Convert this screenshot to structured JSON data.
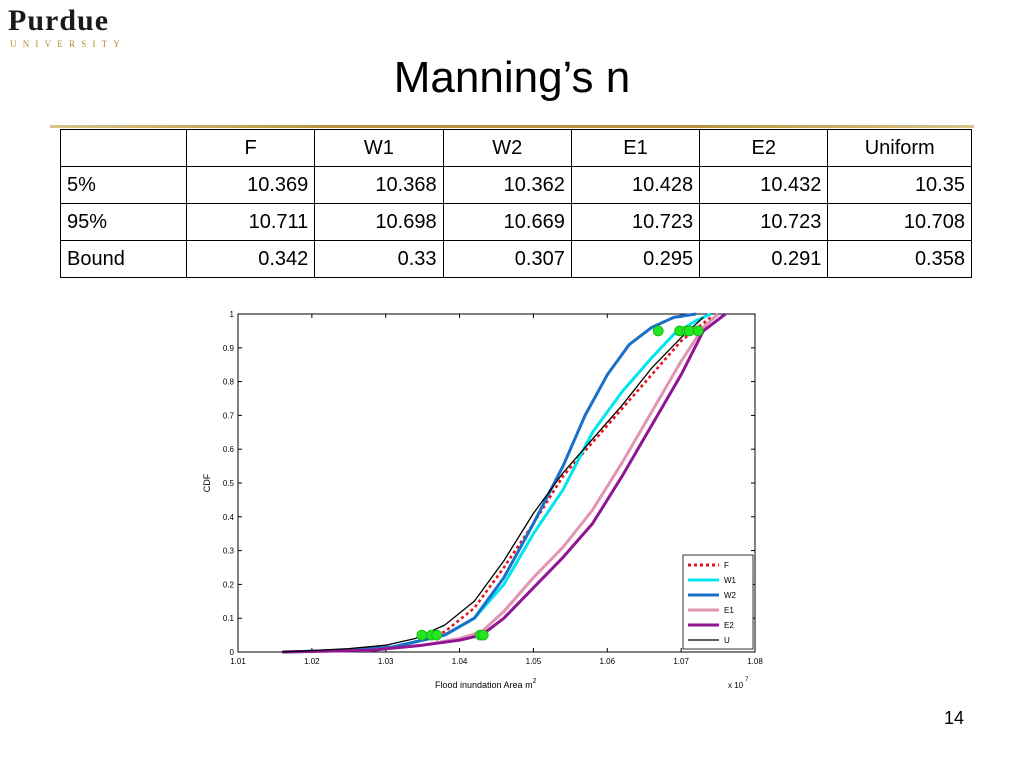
{
  "logo": {
    "name": "Purdue",
    "sub": "UNIVERSITY"
  },
  "slide": {
    "title": "Manning’s n",
    "number": "14"
  },
  "table": {
    "headers": [
      "",
      "F",
      "W1",
      "W2",
      "E1",
      "E2",
      "Uniform"
    ],
    "rows": [
      {
        "label": "5%",
        "values": [
          "10.369",
          "10.368",
          "10.362",
          "10.428",
          "10.432",
          "10.35"
        ]
      },
      {
        "label": "95%",
        "values": [
          "10.711",
          "10.698",
          "10.669",
          "10.723",
          "10.723",
          "10.708"
        ]
      },
      {
        "label": "Bound",
        "values": [
          "0.342",
          "0.33",
          "0.307",
          "0.295",
          "0.291",
          "0.358"
        ]
      }
    ]
  },
  "chart_data": {
    "type": "line",
    "xlabel": "Flood inundation Area m",
    "xlabel_superscript": "2",
    "ylabel": "CDF",
    "x_multiplier": "x 10",
    "x_multiplier_exp": "7",
    "xlim": [
      1.01,
      1.08
    ],
    "ylim": [
      0,
      1
    ],
    "xticks": [
      "1.01",
      "1.02",
      "1.03",
      "1.04",
      "1.05",
      "1.06",
      "1.07",
      "1.08"
    ],
    "yticks": [
      "0",
      "0.1",
      "0.2",
      "0.3",
      "0.4",
      "0.5",
      "0.6",
      "0.7",
      "0.8",
      "0.9",
      "1"
    ],
    "grid": false,
    "legend_position": "bottom-right",
    "colors": {
      "F": "#e8121c",
      "W1": "#00e5f0",
      "W2": "#1a6fc9",
      "E1": "#e394b4",
      "E2": "#8f1592",
      "U": "#000000",
      "marker": "#22e61e"
    },
    "series": [
      {
        "name": "F",
        "dash": true,
        "x": [
          1.016,
          1.025,
          1.031,
          1.034,
          1.038,
          1.042,
          1.046,
          1.05,
          1.054,
          1.058,
          1.062,
          1.066,
          1.07,
          1.074
        ],
        "y": [
          0,
          0.005,
          0.015,
          0.03,
          0.06,
          0.13,
          0.25,
          0.38,
          0.52,
          0.62,
          0.72,
          0.82,
          0.92,
          0.99
        ]
      },
      {
        "name": "W1",
        "dash": false,
        "x": [
          1.016,
          1.025,
          1.031,
          1.034,
          1.038,
          1.042,
          1.046,
          1.05,
          1.054,
          1.058,
          1.062,
          1.066,
          1.069,
          1.072,
          1.074
        ],
        "y": [
          0,
          0.005,
          0.015,
          0.03,
          0.05,
          0.1,
          0.2,
          0.35,
          0.48,
          0.65,
          0.77,
          0.87,
          0.94,
          0.98,
          1.0
        ]
      },
      {
        "name": "W2",
        "dash": false,
        "x": [
          1.016,
          1.025,
          1.031,
          1.034,
          1.038,
          1.042,
          1.046,
          1.05,
          1.054,
          1.057,
          1.06,
          1.063,
          1.066,
          1.069,
          1.072
        ],
        "y": [
          0,
          0.005,
          0.015,
          0.03,
          0.05,
          0.1,
          0.22,
          0.38,
          0.55,
          0.7,
          0.82,
          0.91,
          0.96,
          0.99,
          1.0
        ]
      },
      {
        "name": "E1",
        "dash": false,
        "x": [
          1.016,
          1.028,
          1.035,
          1.04,
          1.043,
          1.046,
          1.05,
          1.054,
          1.058,
          1.062,
          1.066,
          1.07,
          1.073,
          1.075
        ],
        "y": [
          0,
          0.005,
          0.02,
          0.04,
          0.06,
          0.12,
          0.22,
          0.31,
          0.42,
          0.56,
          0.71,
          0.86,
          0.96,
          1.0
        ]
      },
      {
        "name": "E2",
        "dash": false,
        "x": [
          1.016,
          1.028,
          1.035,
          1.04,
          1.043,
          1.046,
          1.05,
          1.054,
          1.058,
          1.062,
          1.066,
          1.07,
          1.073,
          1.076
        ],
        "y": [
          0,
          0.005,
          0.02,
          0.035,
          0.05,
          0.1,
          0.19,
          0.28,
          0.38,
          0.52,
          0.67,
          0.82,
          0.95,
          1.0
        ]
      },
      {
        "name": "U",
        "dash": false,
        "x": [
          1.016,
          1.025,
          1.03,
          1.034,
          1.038,
          1.042,
          1.046,
          1.05,
          1.054,
          1.058,
          1.062,
          1.066,
          1.07,
          1.073
        ],
        "y": [
          0,
          0.01,
          0.02,
          0.04,
          0.08,
          0.15,
          0.27,
          0.41,
          0.53,
          0.63,
          0.73,
          0.84,
          0.93,
          0.99
        ]
      }
    ],
    "markers": [
      {
        "x": 1.0349,
        "y": 0.05
      },
      {
        "x": 1.0362,
        "y": 0.05
      },
      {
        "x": 1.0369,
        "y": 0.05
      },
      {
        "x": 1.0428,
        "y": 0.05
      },
      {
        "x": 1.0432,
        "y": 0.05
      },
      {
        "x": 1.0669,
        "y": 0.95
      },
      {
        "x": 1.0698,
        "y": 0.95
      },
      {
        "x": 1.0708,
        "y": 0.95
      },
      {
        "x": 1.0711,
        "y": 0.95
      },
      {
        "x": 1.0723,
        "y": 0.95
      }
    ]
  }
}
